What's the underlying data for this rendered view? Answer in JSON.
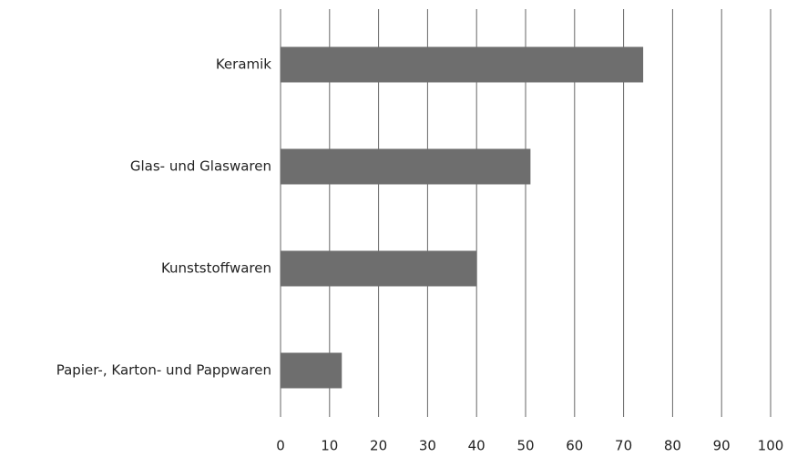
{
  "chart_data": {
    "type": "hbar",
    "categories": [
      "Keramik",
      "Glas- und Glaswaren",
      "Kunststoffwaren",
      "Papier-, Karton- und Pappwaren"
    ],
    "values": [
      74,
      51,
      40,
      12.5
    ],
    "color": "#6e6e6e",
    "xlim": [
      0,
      100
    ],
    "xticks": [
      0,
      10,
      20,
      30,
      40,
      50,
      60,
      70,
      80,
      90,
      100
    ],
    "grid": true
  }
}
